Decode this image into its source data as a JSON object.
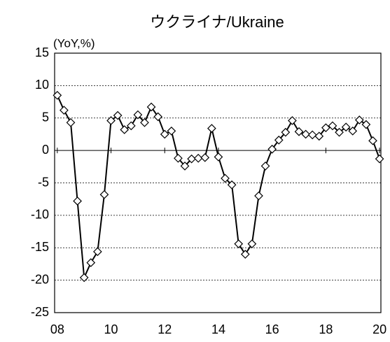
{
  "chart_data": {
    "type": "line",
    "title": "ウクライナ/Ukraine",
    "y_label": "(YoY,%)",
    "x": [
      2008,
      2008.25,
      2008.5,
      2008.75,
      2009,
      2009.25,
      2009.5,
      2009.75,
      2010,
      2010.25,
      2010.5,
      2010.75,
      2011,
      2011.25,
      2011.5,
      2011.75,
      2012,
      2012.25,
      2012.5,
      2012.75,
      2013,
      2013.25,
      2013.5,
      2013.75,
      2014,
      2014.25,
      2014.5,
      2014.75,
      2015,
      2015.25,
      2015.5,
      2015.75,
      2016,
      2016.25,
      2016.5,
      2016.75,
      2017,
      2017.25,
      2017.5,
      2017.75,
      2018,
      2018.25,
      2018.5,
      2018.75,
      2019,
      2019.25,
      2019.5,
      2019.75,
      2020
    ],
    "series": [
      {
        "name": "Ukraine",
        "color": "#000000",
        "values": [
          8.5,
          6.2,
          4.3,
          -7.8,
          -19.6,
          -17.3,
          -15.6,
          -6.8,
          4.6,
          5.4,
          3.2,
          3.8,
          5.5,
          4.3,
          6.7,
          5.2,
          2.5,
          3.0,
          -1.2,
          -2.4,
          -1.3,
          -1.2,
          -1.1,
          3.4,
          -1.0,
          -4.3,
          -5.3,
          -14.4,
          -16.0,
          -14.4,
          -7.0,
          -2.4,
          0.2,
          1.6,
          2.8,
          4.6,
          2.9,
          2.5,
          2.4,
          2.2,
          3.5,
          3.8,
          2.8,
          3.6,
          3.0,
          4.7,
          4.0,
          1.5,
          -1.3
        ]
      }
    ],
    "xlim": [
      2007.9,
      2020.05
    ],
    "xticks": [
      {
        "value": 2008,
        "label": "08"
      },
      {
        "value": 2010,
        "label": "10"
      },
      {
        "value": 2012,
        "label": "12"
      },
      {
        "value": 2014,
        "label": "14"
      },
      {
        "value": 2016,
        "label": "16"
      },
      {
        "value": 2018,
        "label": "18"
      },
      {
        "value": 2020,
        "label": "20"
      }
    ],
    "ylim": [
      -25,
      15
    ],
    "yticks": [
      -25,
      -20,
      -15,
      -10,
      -5,
      0,
      5,
      10,
      15
    ],
    "grid": true
  }
}
